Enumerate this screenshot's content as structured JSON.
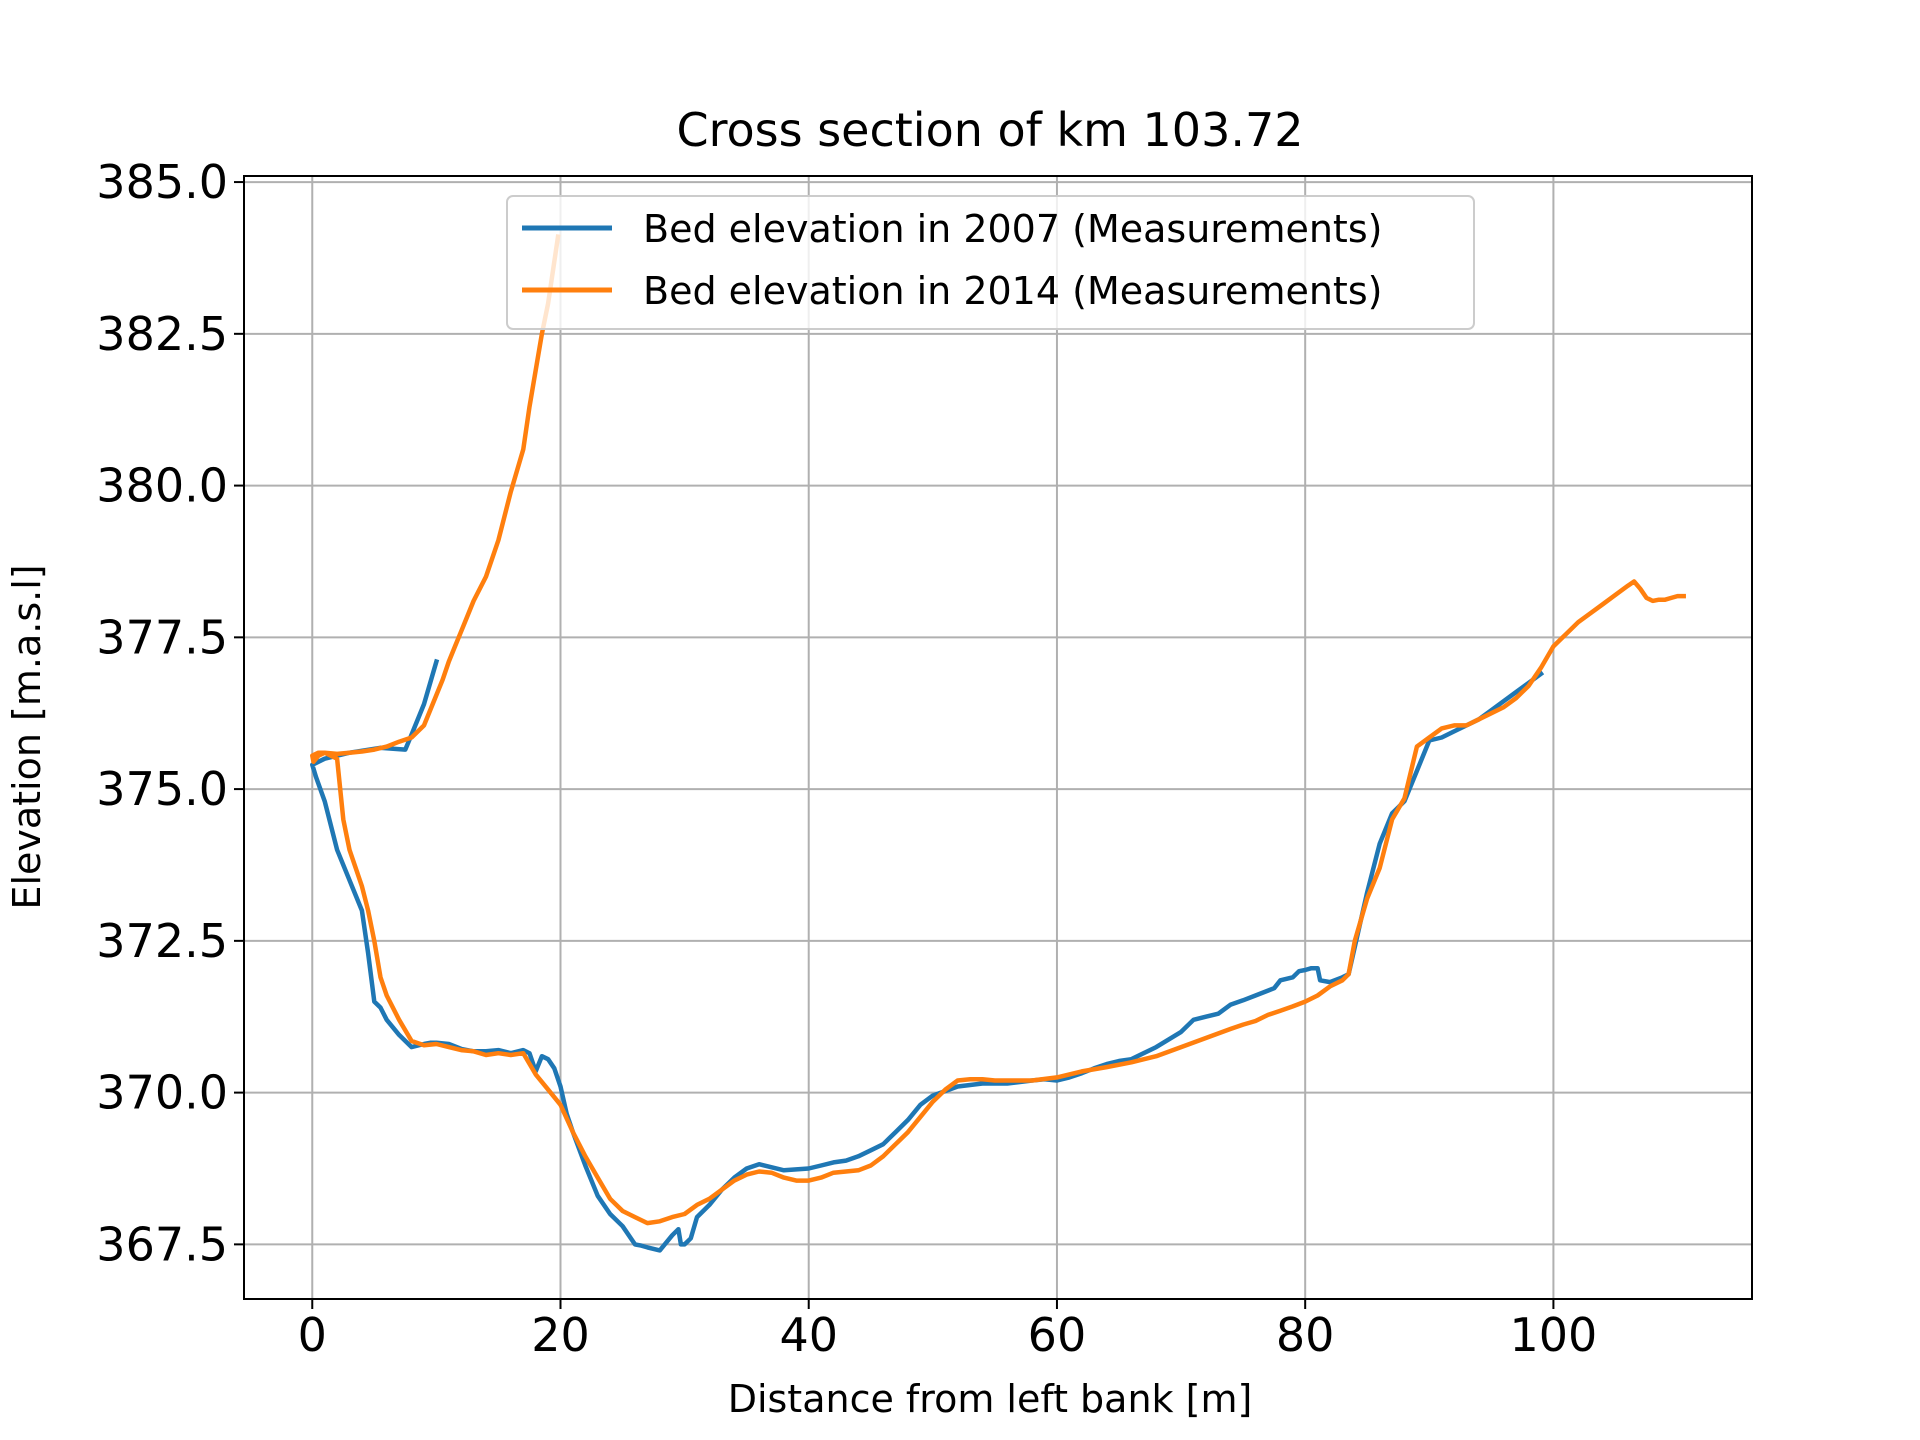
{
  "chart_data": {
    "type": "line",
    "title": "Cross section of km 103.72",
    "xlabel": "Distance from left bank [m]",
    "ylabel": "Elevation [m.a.s.l]",
    "xlim": [
      -5.5,
      116
    ],
    "ylim": [
      366.6,
      385.1
    ],
    "xticks": [
      0,
      20,
      40,
      60,
      80,
      100
    ],
    "yticks": [
      367.5,
      370.0,
      372.5,
      375.0,
      377.5,
      380.0,
      382.5,
      385.0
    ],
    "xtick_labels": [
      "0",
      "20",
      "40",
      "60",
      "80",
      "100"
    ],
    "ytick_labels": [
      "367.5",
      "370.0",
      "372.5",
      "375.0",
      "377.5",
      "380.0",
      "382.5",
      "385.0"
    ],
    "grid": true,
    "legend_position": "upper center",
    "series": [
      {
        "name": "Bed elevation in 2007 (Measurements)",
        "color": "#1f77b4",
        "x": [
          10.0,
          9.0,
          8.0,
          7.5,
          5.5,
          3.0,
          1.0,
          0.0,
          0.3,
          1.0,
          2.0,
          3.0,
          4.0,
          4.5,
          5.0,
          5.5,
          6.0,
          7.0,
          8.0,
          9.0,
          9.5,
          10.0,
          11.0,
          12.0,
          13.0,
          14.0,
          15.0,
          16.0,
          17.0,
          17.5,
          18.0,
          18.5,
          19.0,
          19.5,
          20.0,
          20.5,
          21.0,
          22.0,
          23.0,
          24.0,
          25.0,
          26.0,
          26.5,
          27.0,
          28.0,
          29.0,
          29.5,
          29.7,
          30.0,
          30.5,
          31.0,
          32.0,
          33.0,
          34.0,
          35.0,
          36.0,
          38.0,
          40.0,
          41.0,
          42.0,
          43.0,
          44.0,
          45.0,
          46.0,
          47.0,
          48.0,
          49.0,
          50.0,
          52.0,
          54.0,
          56.0,
          58.0,
          59.0,
          60.0,
          61.0,
          62.0,
          63.0,
          64.0,
          65.0,
          66.0,
          68.0,
          70.0,
          71.0,
          72.0,
          73.0,
          74.0,
          75.0,
          76.0,
          77.0,
          77.5,
          78.0,
          79.0,
          79.5,
          80.0,
          80.5,
          81.0,
          81.2,
          82.0,
          83.0,
          83.5,
          84.0,
          85.0,
          86.0,
          87.0,
          88.0,
          89.0,
          90.0,
          91.0,
          92.0,
          93.0,
          94.0,
          95.0,
          96.0,
          97.0,
          98.0,
          99.0
        ],
        "y": [
          377.1,
          376.4,
          375.9,
          375.65,
          375.68,
          375.6,
          375.5,
          375.4,
          375.2,
          374.8,
          374.0,
          373.5,
          373.0,
          372.3,
          371.5,
          371.4,
          371.2,
          370.95,
          370.75,
          370.8,
          370.82,
          370.82,
          370.8,
          370.72,
          370.68,
          370.68,
          370.7,
          370.65,
          370.7,
          370.65,
          370.35,
          370.6,
          370.55,
          370.4,
          370.1,
          369.65,
          369.35,
          368.8,
          368.3,
          368.0,
          367.8,
          367.5,
          367.48,
          367.45,
          367.4,
          367.65,
          367.75,
          367.5,
          367.5,
          367.6,
          367.95,
          368.15,
          368.4,
          368.6,
          368.75,
          368.82,
          368.72,
          368.75,
          368.8,
          368.85,
          368.88,
          368.95,
          369.05,
          369.15,
          369.35,
          369.55,
          369.8,
          369.95,
          370.1,
          370.15,
          370.15,
          370.2,
          370.22,
          370.2,
          370.25,
          370.32,
          370.4,
          370.47,
          370.52,
          370.55,
          370.75,
          371.0,
          371.2,
          371.25,
          371.3,
          371.45,
          371.52,
          371.6,
          371.68,
          371.72,
          371.85,
          371.9,
          372.0,
          372.02,
          372.05,
          372.05,
          371.85,
          371.82,
          371.9,
          371.95,
          372.4,
          373.3,
          374.1,
          374.6,
          374.8,
          375.3,
          375.8,
          375.85,
          375.95,
          376.05,
          376.15,
          376.3,
          376.45,
          376.6,
          376.75,
          376.9
        ]
      },
      {
        "name": "Bed elevation in 2014 (Measurements)",
        "color": "#ff7f0e",
        "x": [
          19.8,
          19.0,
          18.5,
          18.0,
          17.5,
          17.0,
          16.0,
          15.5,
          15.0,
          14.0,
          13.0,
          12.5,
          12.0,
          11.5,
          11.0,
          10.5,
          10.0,
          9.0,
          8.0,
          7.0,
          6.0,
          5.0,
          4.0,
          3.0,
          2.0,
          1.0,
          0.5,
          0.0,
          0.1,
          0.5,
          1.0,
          1.5,
          2.0,
          2.5,
          3.0,
          4.0,
          4.5,
          5.0,
          5.5,
          6.0,
          7.0,
          8.0,
          9.0,
          10.0,
          11.0,
          12.0,
          13.0,
          14.0,
          15.0,
          16.0,
          17.0,
          18.0,
          19.0,
          20.0,
          21.0,
          22.0,
          23.0,
          24.0,
          25.0,
          26.0,
          26.5,
          27.0,
          28.0,
          29.0,
          30.0,
          31.0,
          32.0,
          33.0,
          34.0,
          35.0,
          36.0,
          37.0,
          38.0,
          39.0,
          40.0,
          41.0,
          42.0,
          43.0,
          44.0,
          45.0,
          46.0,
          47.0,
          48.0,
          49.0,
          50.0,
          51.0,
          52.0,
          53.0,
          54.0,
          55.0,
          56.0,
          58.0,
          60.0,
          62.0,
          64.0,
          66.0,
          68.0,
          70.0,
          72.0,
          74.0,
          75.0,
          76.0,
          77.0,
          78.0,
          79.0,
          80.0,
          81.0,
          82.0,
          83.0,
          83.5,
          84.0,
          85.0,
          86.0,
          87.0,
          88.0,
          89.0,
          90.0,
          91.0,
          92.0,
          93.0,
          94.0,
          95.0,
          96.0,
          97.0,
          98.0,
          99.0,
          100.0,
          101.0,
          102.0,
          103.0,
          104.0,
          105.0,
          106.0,
          106.5,
          107.0,
          107.5,
          108.0,
          108.5,
          109.0,
          109.5,
          110.0,
          110.5
        ],
        "y": [
          384.1,
          383.0,
          382.5,
          381.9,
          381.3,
          380.6,
          379.9,
          379.5,
          379.1,
          378.5,
          378.1,
          377.85,
          377.6,
          377.35,
          377.1,
          376.8,
          376.55,
          376.05,
          375.85,
          375.78,
          375.7,
          375.65,
          375.62,
          375.6,
          375.58,
          375.6,
          375.6,
          375.55,
          375.45,
          375.55,
          375.6,
          375.55,
          375.5,
          374.5,
          374.0,
          373.4,
          373.0,
          372.5,
          371.9,
          371.6,
          371.2,
          370.85,
          370.78,
          370.8,
          370.75,
          370.7,
          370.68,
          370.62,
          370.65,
          370.62,
          370.65,
          370.3,
          370.05,
          369.8,
          369.35,
          368.95,
          368.6,
          368.25,
          368.05,
          367.95,
          367.9,
          367.85,
          367.88,
          367.95,
          368.0,
          368.15,
          368.25,
          368.4,
          368.55,
          368.65,
          368.7,
          368.68,
          368.6,
          368.55,
          368.55,
          368.6,
          368.68,
          368.7,
          368.72,
          368.8,
          368.95,
          369.15,
          369.35,
          369.6,
          369.85,
          370.05,
          370.2,
          370.22,
          370.22,
          370.2,
          370.2,
          370.2,
          370.25,
          370.35,
          370.42,
          370.5,
          370.6,
          370.75,
          370.9,
          371.05,
          371.12,
          371.18,
          371.28,
          371.35,
          371.42,
          371.5,
          371.6,
          371.75,
          371.85,
          371.95,
          372.5,
          373.2,
          373.7,
          374.5,
          374.85,
          375.7,
          375.85,
          376.0,
          376.05,
          376.05,
          376.15,
          376.25,
          376.35,
          376.5,
          376.7,
          377.0,
          377.35,
          377.55,
          377.75,
          377.9,
          378.05,
          378.2,
          378.35,
          378.42,
          378.3,
          378.15,
          378.1,
          378.12,
          378.12,
          378.15,
          378.18,
          378.18
        ]
      }
    ]
  }
}
